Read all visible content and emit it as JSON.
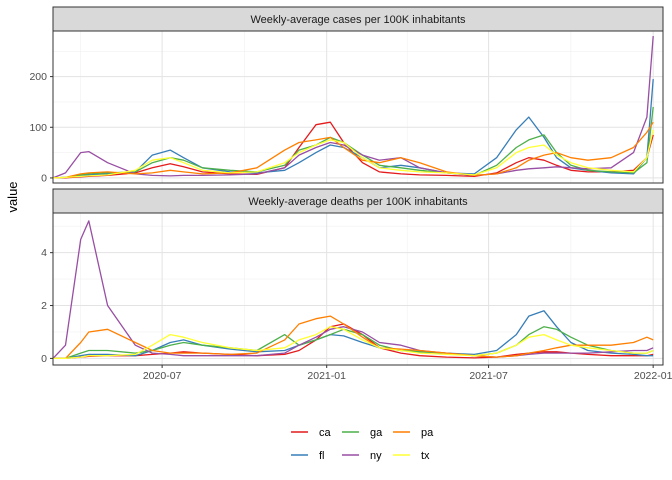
{
  "chart_data": {
    "type": "line",
    "ylabel": "value",
    "x_ticks": [
      "2020-07",
      "2021-01",
      "2021-07",
      "2022-01"
    ],
    "series_colors": {
      "ca": "#e41a1c",
      "fl": "#377eb8",
      "ga": "#4daf4a",
      "ny": "#984ea3",
      "pa": "#ff7f00",
      "tx": "#ffff33"
    },
    "legend": {
      "placement": "bottom",
      "items": [
        "ca",
        "ga",
        "pa",
        "fl",
        "ny",
        "tx"
      ]
    },
    "x_dates": [
      "2020-03-01",
      "2020-03-15",
      "2020-04-01",
      "2020-04-10",
      "2020-05-01",
      "2020-06-01",
      "2020-06-20",
      "2020-07-10",
      "2020-07-25",
      "2020-08-15",
      "2020-09-15",
      "2020-10-15",
      "2020-11-15",
      "2020-12-01",
      "2020-12-20",
      "2021-01-05",
      "2021-01-20",
      "2021-02-10",
      "2021-03-01",
      "2021-03-25",
      "2021-04-15",
      "2021-05-15",
      "2021-06-15",
      "2021-07-10",
      "2021-08-01",
      "2021-08-15",
      "2021-09-01",
      "2021-09-15",
      "2021-10-01",
      "2021-10-20",
      "2021-11-15",
      "2021-12-10",
      "2021-12-25",
      "2022-01-01"
    ],
    "facets": [
      {
        "title": "Weekly-average cases per 100K inhabitants",
        "yticks": [
          0,
          100,
          200
        ],
        "ylim": [
          -10,
          290
        ],
        "series": [
          {
            "name": "ca",
            "values": [
              0,
              0,
              2,
              3,
              5,
              10,
              20,
              28,
              22,
              12,
              8,
              7,
              20,
              60,
              105,
              110,
              70,
              30,
              12,
              8,
              6,
              5,
              3,
              10,
              30,
              40,
              35,
              25,
              15,
              12,
              12,
              15,
              40,
              85
            ]
          },
          {
            "name": "fl",
            "values": [
              0,
              1,
              5,
              6,
              8,
              12,
              45,
              55,
              40,
              20,
              12,
              10,
              15,
              30,
              50,
              65,
              60,
              40,
              20,
              25,
              20,
              10,
              8,
              40,
              95,
              120,
              80,
              40,
              20,
              15,
              10,
              8,
              40,
              195
            ]
          },
          {
            "name": "ga",
            "values": [
              0,
              1,
              6,
              8,
              10,
              12,
              30,
              40,
              35,
              20,
              15,
              12,
              25,
              55,
              65,
              80,
              70,
              45,
              25,
              20,
              15,
              10,
              5,
              25,
              60,
              75,
              85,
              50,
              25,
              15,
              12,
              10,
              30,
              140
            ]
          },
          {
            "name": "ny",
            "values": [
              0,
              10,
              50,
              52,
              30,
              8,
              5,
              4,
              5,
              5,
              6,
              8,
              20,
              45,
              60,
              70,
              65,
              45,
              35,
              40,
              20,
              10,
              5,
              8,
              15,
              18,
              20,
              22,
              20,
              18,
              20,
              50,
              120,
              280
            ]
          },
          {
            "name": "pa",
            "values": [
              0,
              1,
              8,
              10,
              12,
              8,
              10,
              15,
              12,
              8,
              10,
              20,
              55,
              70,
              75,
              80,
              60,
              35,
              30,
              40,
              30,
              12,
              5,
              8,
              20,
              35,
              45,
              50,
              40,
              35,
              40,
              60,
              90,
              110
            ]
          },
          {
            "name": "tx",
            "values": [
              0,
              1,
              3,
              4,
              6,
              15,
              35,
              40,
              30,
              15,
              10,
              12,
              30,
              50,
              65,
              75,
              70,
              40,
              20,
              15,
              12,
              10,
              6,
              20,
              50,
              60,
              65,
              45,
              30,
              20,
              15,
              12,
              40,
              95
            ]
          }
        ]
      },
      {
        "title": "Weekly-average deaths per 100K inhabitants",
        "yticks": [
          0,
          2,
          4
        ],
        "ylim": [
          -0.25,
          5.5
        ],
        "series": [
          {
            "name": "ca",
            "values": [
              0,
              0,
              0.05,
              0.08,
              0.1,
              0.1,
              0.15,
              0.2,
              0.25,
              0.2,
              0.15,
              0.1,
              0.15,
              0.3,
              0.7,
              1.2,
              1.3,
              0.9,
              0.4,
              0.2,
              0.1,
              0.05,
              0.02,
              0.05,
              0.15,
              0.2,
              0.25,
              0.25,
              0.2,
              0.15,
              0.1,
              0.1,
              0.1,
              0.15
            ]
          },
          {
            "name": "fl",
            "values": [
              0,
              0,
              0.1,
              0.15,
              0.15,
              0.1,
              0.3,
              0.6,
              0.7,
              0.5,
              0.35,
              0.25,
              0.3,
              0.5,
              0.7,
              0.9,
              0.85,
              0.6,
              0.4,
              0.3,
              0.25,
              0.2,
              0.15,
              0.3,
              0.9,
              1.6,
              1.8,
              1.2,
              0.6,
              0.3,
              0.2,
              0.15,
              0.1,
              0.1
            ]
          },
          {
            "name": "ga",
            "values": [
              0,
              0,
              0.2,
              0.3,
              0.3,
              0.2,
              0.3,
              0.5,
              0.6,
              0.5,
              0.4,
              0.3,
              0.9,
              0.5,
              0.7,
              0.9,
              1.1,
              0.9,
              0.5,
              0.3,
              0.25,
              0.2,
              0.1,
              0.2,
              0.5,
              0.9,
              1.2,
              1.1,
              0.8,
              0.5,
              0.3,
              0.2,
              0.2,
              0.3
            ]
          },
          {
            "name": "ny",
            "values": [
              0,
              0.5,
              4.5,
              5.2,
              2.0,
              0.5,
              0.2,
              0.15,
              0.1,
              0.1,
              0.1,
              0.1,
              0.2,
              0.5,
              0.8,
              1.1,
              1.2,
              1.0,
              0.6,
              0.5,
              0.3,
              0.2,
              0.1,
              0.05,
              0.1,
              0.15,
              0.2,
              0.2,
              0.2,
              0.2,
              0.25,
              0.3,
              0.3,
              0.4
            ]
          },
          {
            "name": "pa",
            "values": [
              0,
              0,
              0.6,
              1.0,
              1.1,
              0.6,
              0.3,
              0.2,
              0.2,
              0.2,
              0.15,
              0.2,
              0.7,
              1.3,
              1.5,
              1.6,
              1.3,
              0.8,
              0.4,
              0.35,
              0.3,
              0.2,
              0.1,
              0.05,
              0.1,
              0.2,
              0.3,
              0.4,
              0.5,
              0.5,
              0.5,
              0.6,
              0.8,
              0.7
            ]
          },
          {
            "name": "tx",
            "values": [
              0,
              0,
              0.05,
              0.1,
              0.1,
              0.15,
              0.5,
              0.9,
              0.8,
              0.6,
              0.4,
              0.3,
              0.4,
              0.7,
              0.9,
              1.2,
              1.1,
              0.7,
              0.4,
              0.3,
              0.2,
              0.15,
              0.1,
              0.2,
              0.5,
              0.8,
              0.9,
              0.7,
              0.5,
              0.4,
              0.3,
              0.2,
              0.2,
              0.3
            ]
          }
        ]
      }
    ]
  }
}
